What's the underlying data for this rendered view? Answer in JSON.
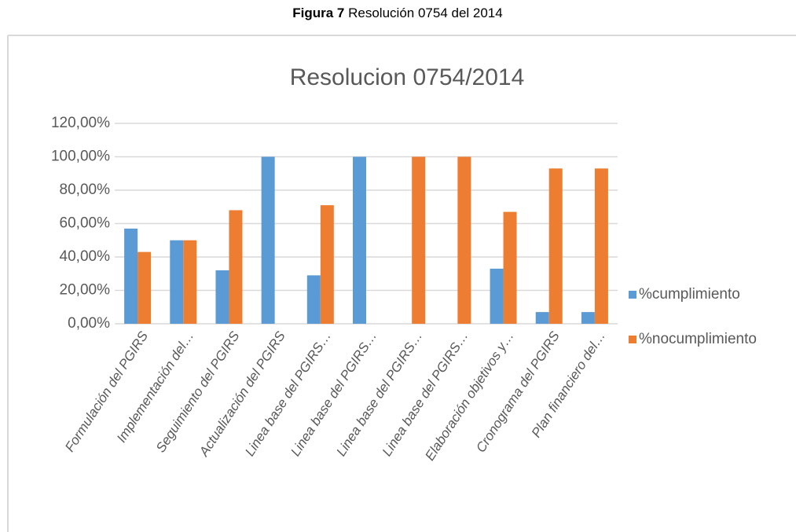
{
  "caption": {
    "label": "Figura 7",
    "text": "Resolución 0754 del 2014"
  },
  "chart_data": {
    "type": "bar",
    "title": "Resolucion 0754/2014",
    "categories": [
      "Formulación del PGIRS",
      "Implementación del…",
      "Seguimiento del PGIRS",
      "Actualización del PGIRS",
      "Linea base del PGIRS…",
      "Linea base del PGIRS…",
      "Linea base del PGIRS…",
      "Linea base del PGIRS…",
      "Elaboración objetivos y…",
      "Cronograma del PGIRS",
      "Plan financiero del…"
    ],
    "series": [
      {
        "name": "%cumplimiento",
        "color": "#5b9bd5",
        "values": [
          57,
          50,
          32,
          100,
          29,
          100,
          0,
          0,
          33,
          7,
          7
        ]
      },
      {
        "name": "%nocumplimiento",
        "color": "#ed7d31",
        "values": [
          43,
          50,
          68,
          0,
          71,
          0,
          100,
          100,
          67,
          93,
          93
        ]
      }
    ],
    "ylim": [
      0,
      120
    ],
    "yticks": [
      {
        "value": 0,
        "label": "0,00%"
      },
      {
        "value": 20,
        "label": "20,00%"
      },
      {
        "value": 40,
        "label": "40,00%"
      },
      {
        "value": 60,
        "label": "60,00%"
      },
      {
        "value": 80,
        "label": "80,00%"
      },
      {
        "value": 100,
        "label": "100,00%"
      },
      {
        "value": 120,
        "label": "120,00%"
      }
    ],
    "grid": true,
    "legend": "right"
  }
}
